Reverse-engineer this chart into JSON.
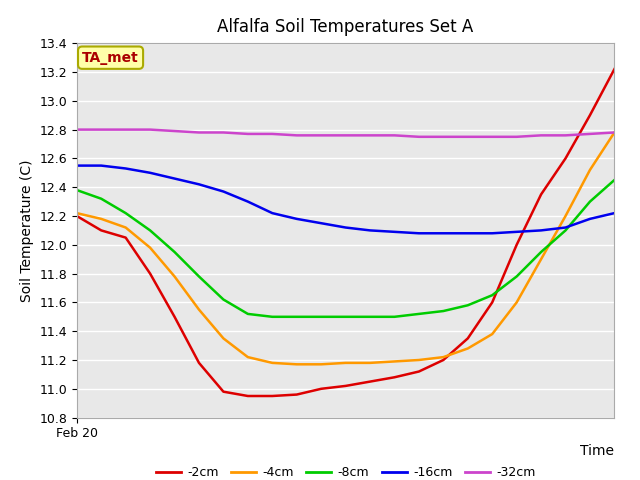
{
  "title": "Alfalfa Soil Temperatures Set A",
  "xlabel": "Time",
  "ylabel": "Soil Temperature (C)",
  "ylim": [
    10.8,
    13.4
  ],
  "xlim": [
    0,
    22
  ],
  "x_tick_label": "Feb 20",
  "background_color": "#e8e8e8",
  "grid_color": "#ffffff",
  "annotation_text": "TA_met",
  "annotation_box_facecolor": "#ffffaa",
  "annotation_box_edgecolor": "#aaaa00",
  "annotation_text_color": "#aa0000",
  "series": {
    "-2cm": {
      "color": "#dd0000",
      "x": [
        0,
        1,
        2,
        3,
        4,
        5,
        6,
        7,
        8,
        9,
        10,
        11,
        12,
        13,
        14,
        15,
        16,
        17,
        18,
        19,
        20,
        21,
        22
      ],
      "y": [
        12.2,
        12.1,
        12.05,
        11.8,
        11.5,
        11.18,
        10.98,
        10.95,
        10.95,
        10.96,
        11.0,
        11.02,
        11.05,
        11.08,
        11.12,
        11.2,
        11.35,
        11.6,
        12.0,
        12.35,
        12.6,
        12.9,
        13.22
      ]
    },
    "-4cm": {
      "color": "#ff9900",
      "x": [
        0,
        1,
        2,
        3,
        4,
        5,
        6,
        7,
        8,
        9,
        10,
        11,
        12,
        13,
        14,
        15,
        16,
        17,
        18,
        19,
        20,
        21,
        22
      ],
      "y": [
        12.22,
        12.18,
        12.12,
        11.98,
        11.78,
        11.55,
        11.35,
        11.22,
        11.18,
        11.17,
        11.17,
        11.18,
        11.18,
        11.19,
        11.2,
        11.22,
        11.28,
        11.38,
        11.6,
        11.9,
        12.2,
        12.52,
        12.78
      ]
    },
    "-8cm": {
      "color": "#00cc00",
      "x": [
        0,
        1,
        2,
        3,
        4,
        5,
        6,
        7,
        8,
        9,
        10,
        11,
        12,
        13,
        14,
        15,
        16,
        17,
        18,
        19,
        20,
        21,
        22
      ],
      "y": [
        12.38,
        12.32,
        12.22,
        12.1,
        11.95,
        11.78,
        11.62,
        11.52,
        11.5,
        11.5,
        11.5,
        11.5,
        11.5,
        11.5,
        11.52,
        11.54,
        11.58,
        11.65,
        11.78,
        11.95,
        12.1,
        12.3,
        12.45
      ]
    },
    "-16cm": {
      "color": "#0000ee",
      "x": [
        0,
        1,
        2,
        3,
        4,
        5,
        6,
        7,
        8,
        9,
        10,
        11,
        12,
        13,
        14,
        15,
        16,
        17,
        18,
        19,
        20,
        21,
        22
      ],
      "y": [
        12.55,
        12.55,
        12.53,
        12.5,
        12.46,
        12.42,
        12.37,
        12.3,
        12.22,
        12.18,
        12.15,
        12.12,
        12.1,
        12.09,
        12.08,
        12.08,
        12.08,
        12.08,
        12.09,
        12.1,
        12.12,
        12.18,
        12.22
      ]
    },
    "-32cm": {
      "color": "#cc44cc",
      "x": [
        0,
        1,
        2,
        3,
        4,
        5,
        6,
        7,
        8,
        9,
        10,
        11,
        12,
        13,
        14,
        15,
        16,
        17,
        18,
        19,
        20,
        21,
        22
      ],
      "y": [
        12.8,
        12.8,
        12.8,
        12.8,
        12.79,
        12.78,
        12.78,
        12.77,
        12.77,
        12.76,
        12.76,
        12.76,
        12.76,
        12.76,
        12.75,
        12.75,
        12.75,
        12.75,
        12.75,
        12.76,
        12.76,
        12.77,
        12.78
      ]
    }
  },
  "legend_labels": [
    "-2cm",
    "-4cm",
    "-8cm",
    "-16cm",
    "-32cm"
  ],
  "yticks": [
    10.8,
    11.0,
    11.2,
    11.4,
    11.6,
    11.8,
    12.0,
    12.2,
    12.4,
    12.6,
    12.8,
    13.0,
    13.2,
    13.4
  ]
}
